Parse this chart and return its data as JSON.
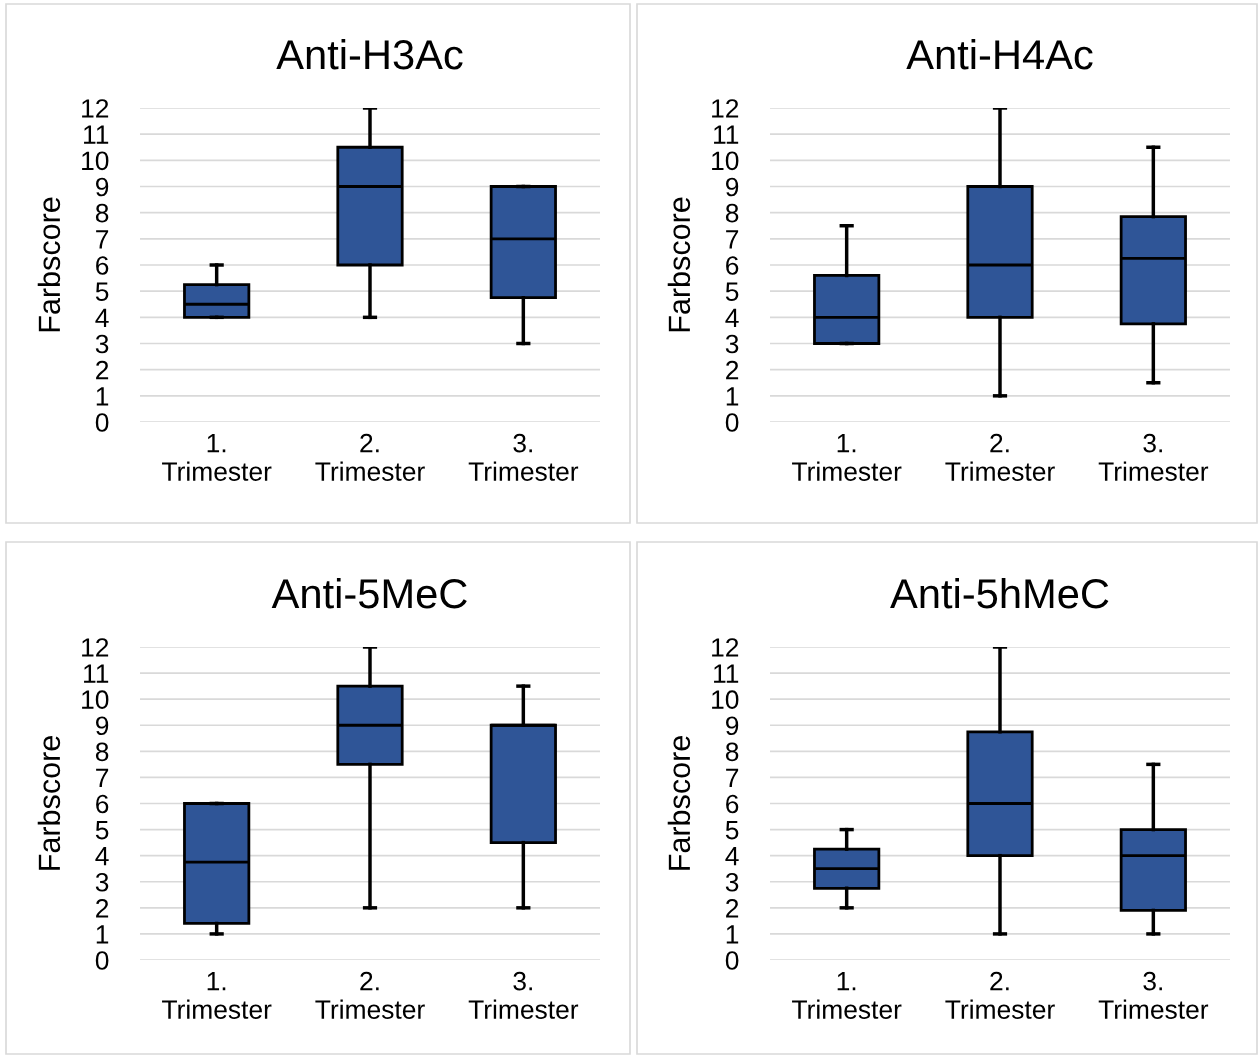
{
  "chart_data": [
    {
      "type": "box",
      "title": "Anti-H3Ac",
      "ylabel": "Farbscore",
      "categories": [
        "1.\nTrimester",
        "2.\nTrimester",
        "3.\nTrimester"
      ],
      "color": "#2f5597",
      "ylim": [
        0,
        12
      ],
      "yticks": [
        0,
        1,
        2,
        3,
        4,
        5,
        6,
        7,
        8,
        9,
        10,
        11,
        12
      ],
      "grid": "y",
      "legend": false,
      "boxes": [
        {
          "low": 4,
          "q1": 4,
          "median": 4.5,
          "q3": 5.25,
          "high": 6
        },
        {
          "low": 4,
          "q1": 6,
          "median": 9,
          "q3": 10.5,
          "high": 12
        },
        {
          "low": 3,
          "q1": 4.75,
          "median": 7,
          "q3": 9,
          "high": 9
        }
      ]
    },
    {
      "type": "box",
      "title": "Anti-H4Ac",
      "ylabel": "Farbscore",
      "categories": [
        "1.\nTrimester",
        "2.\nTrimester",
        "3.\nTrimester"
      ],
      "color": "#2f5597",
      "ylim": [
        0,
        12
      ],
      "yticks": [
        0,
        1,
        2,
        3,
        4,
        5,
        6,
        7,
        8,
        9,
        10,
        11,
        12
      ],
      "grid": "y",
      "legend": false,
      "boxes": [
        {
          "low": 3,
          "q1": 3,
          "median": 4,
          "q3": 5.6,
          "high": 7.5
        },
        {
          "low": 1,
          "q1": 4,
          "median": 6,
          "q3": 9,
          "high": 12
        },
        {
          "low": 1.5,
          "q1": 3.75,
          "median": 6.25,
          "q3": 7.85,
          "high": 10.5
        }
      ]
    },
    {
      "type": "box",
      "title": "Anti-5MeC",
      "ylabel": "Farbscore",
      "categories": [
        "1.\nTrimester",
        "2.\nTrimester",
        "3.\nTrimester"
      ],
      "color": "#2f5597",
      "ylim": [
        0,
        12
      ],
      "yticks": [
        0,
        1,
        2,
        3,
        4,
        5,
        6,
        7,
        8,
        9,
        10,
        11,
        12
      ],
      "grid": "y",
      "legend": false,
      "boxes": [
        {
          "low": 1,
          "q1": 1.4,
          "median": 3.75,
          "q3": 6,
          "high": 6
        },
        {
          "low": 2,
          "q1": 7.5,
          "median": 9,
          "q3": 10.5,
          "high": 12
        },
        {
          "low": 2,
          "q1": 4.5,
          "median": 9,
          "q3": 9,
          "high": 10.5
        }
      ]
    },
    {
      "type": "box",
      "title": "Anti-5hMeC",
      "ylabel": "Farbscore",
      "categories": [
        "1.\nTrimester",
        "2.\nTrimester",
        "3.\nTrimester"
      ],
      "color": "#2f5597",
      "ylim": [
        0,
        12
      ],
      "yticks": [
        0,
        1,
        2,
        3,
        4,
        5,
        6,
        7,
        8,
        9,
        10,
        11,
        12
      ],
      "grid": "y",
      "legend": false,
      "boxes": [
        {
          "low": 2,
          "q1": 2.75,
          "median": 3.5,
          "q3": 4.25,
          "high": 5
        },
        {
          "low": 1,
          "q1": 4,
          "median": 6,
          "q3": 8.75,
          "high": 12
        },
        {
          "low": 1,
          "q1": 1.9,
          "median": 4,
          "q3": 5,
          "high": 7.5
        }
      ]
    }
  ]
}
